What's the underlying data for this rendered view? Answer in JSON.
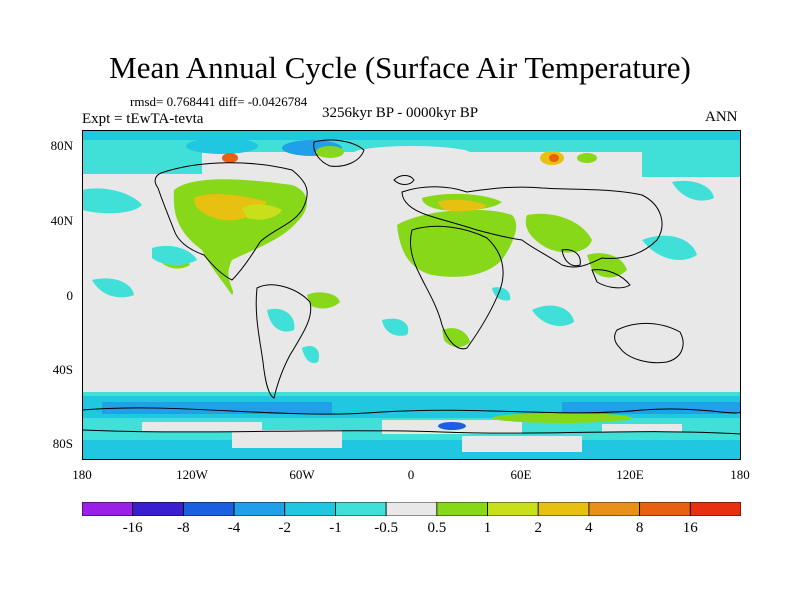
{
  "title": "Mean Annual Cycle (Surface Air Temperature)",
  "stats_line": "rmsd= 0.768441 diff= -0.0426784",
  "experiment_label": "Expt = tEwTA-tevta",
  "period_label": "3256kyr BP - 0000kyr BP",
  "season_label": "ANN",
  "axes": {
    "y_ticks": [
      "80N",
      "40N",
      "0",
      "40S",
      "80S"
    ],
    "x_ticks": [
      "180",
      "120W",
      "60W",
      "0",
      "60E",
      "120E",
      "180"
    ]
  },
  "colorbar": {
    "labels": [
      "-16",
      "-8",
      "-4",
      "-2",
      "-1",
      "-0.5",
      "0.5",
      "1",
      "2",
      "4",
      "8",
      "16"
    ],
    "colors": [
      "#9a1fe8",
      "#3a1fd0",
      "#1a5fe0",
      "#1fa0e8",
      "#1fc8e0",
      "#40e0d8",
      "#e8e8e8",
      "#88d81a",
      "#c8e01a",
      "#e8c010",
      "#e89018",
      "#e86010",
      "#e83010"
    ]
  },
  "map_colors": {
    "background": "#e8e8e8",
    "cool_light": "#40e0d8",
    "cool_mid": "#1fc8e0",
    "cool_strong": "#1fa0e8",
    "cool_deep": "#1a5fe0",
    "warm_light": "#88d81a",
    "warm_mid": "#c8e01a",
    "warm_strong": "#e8c010",
    "warm_hot": "#e86010",
    "coast": "#000000"
  }
}
